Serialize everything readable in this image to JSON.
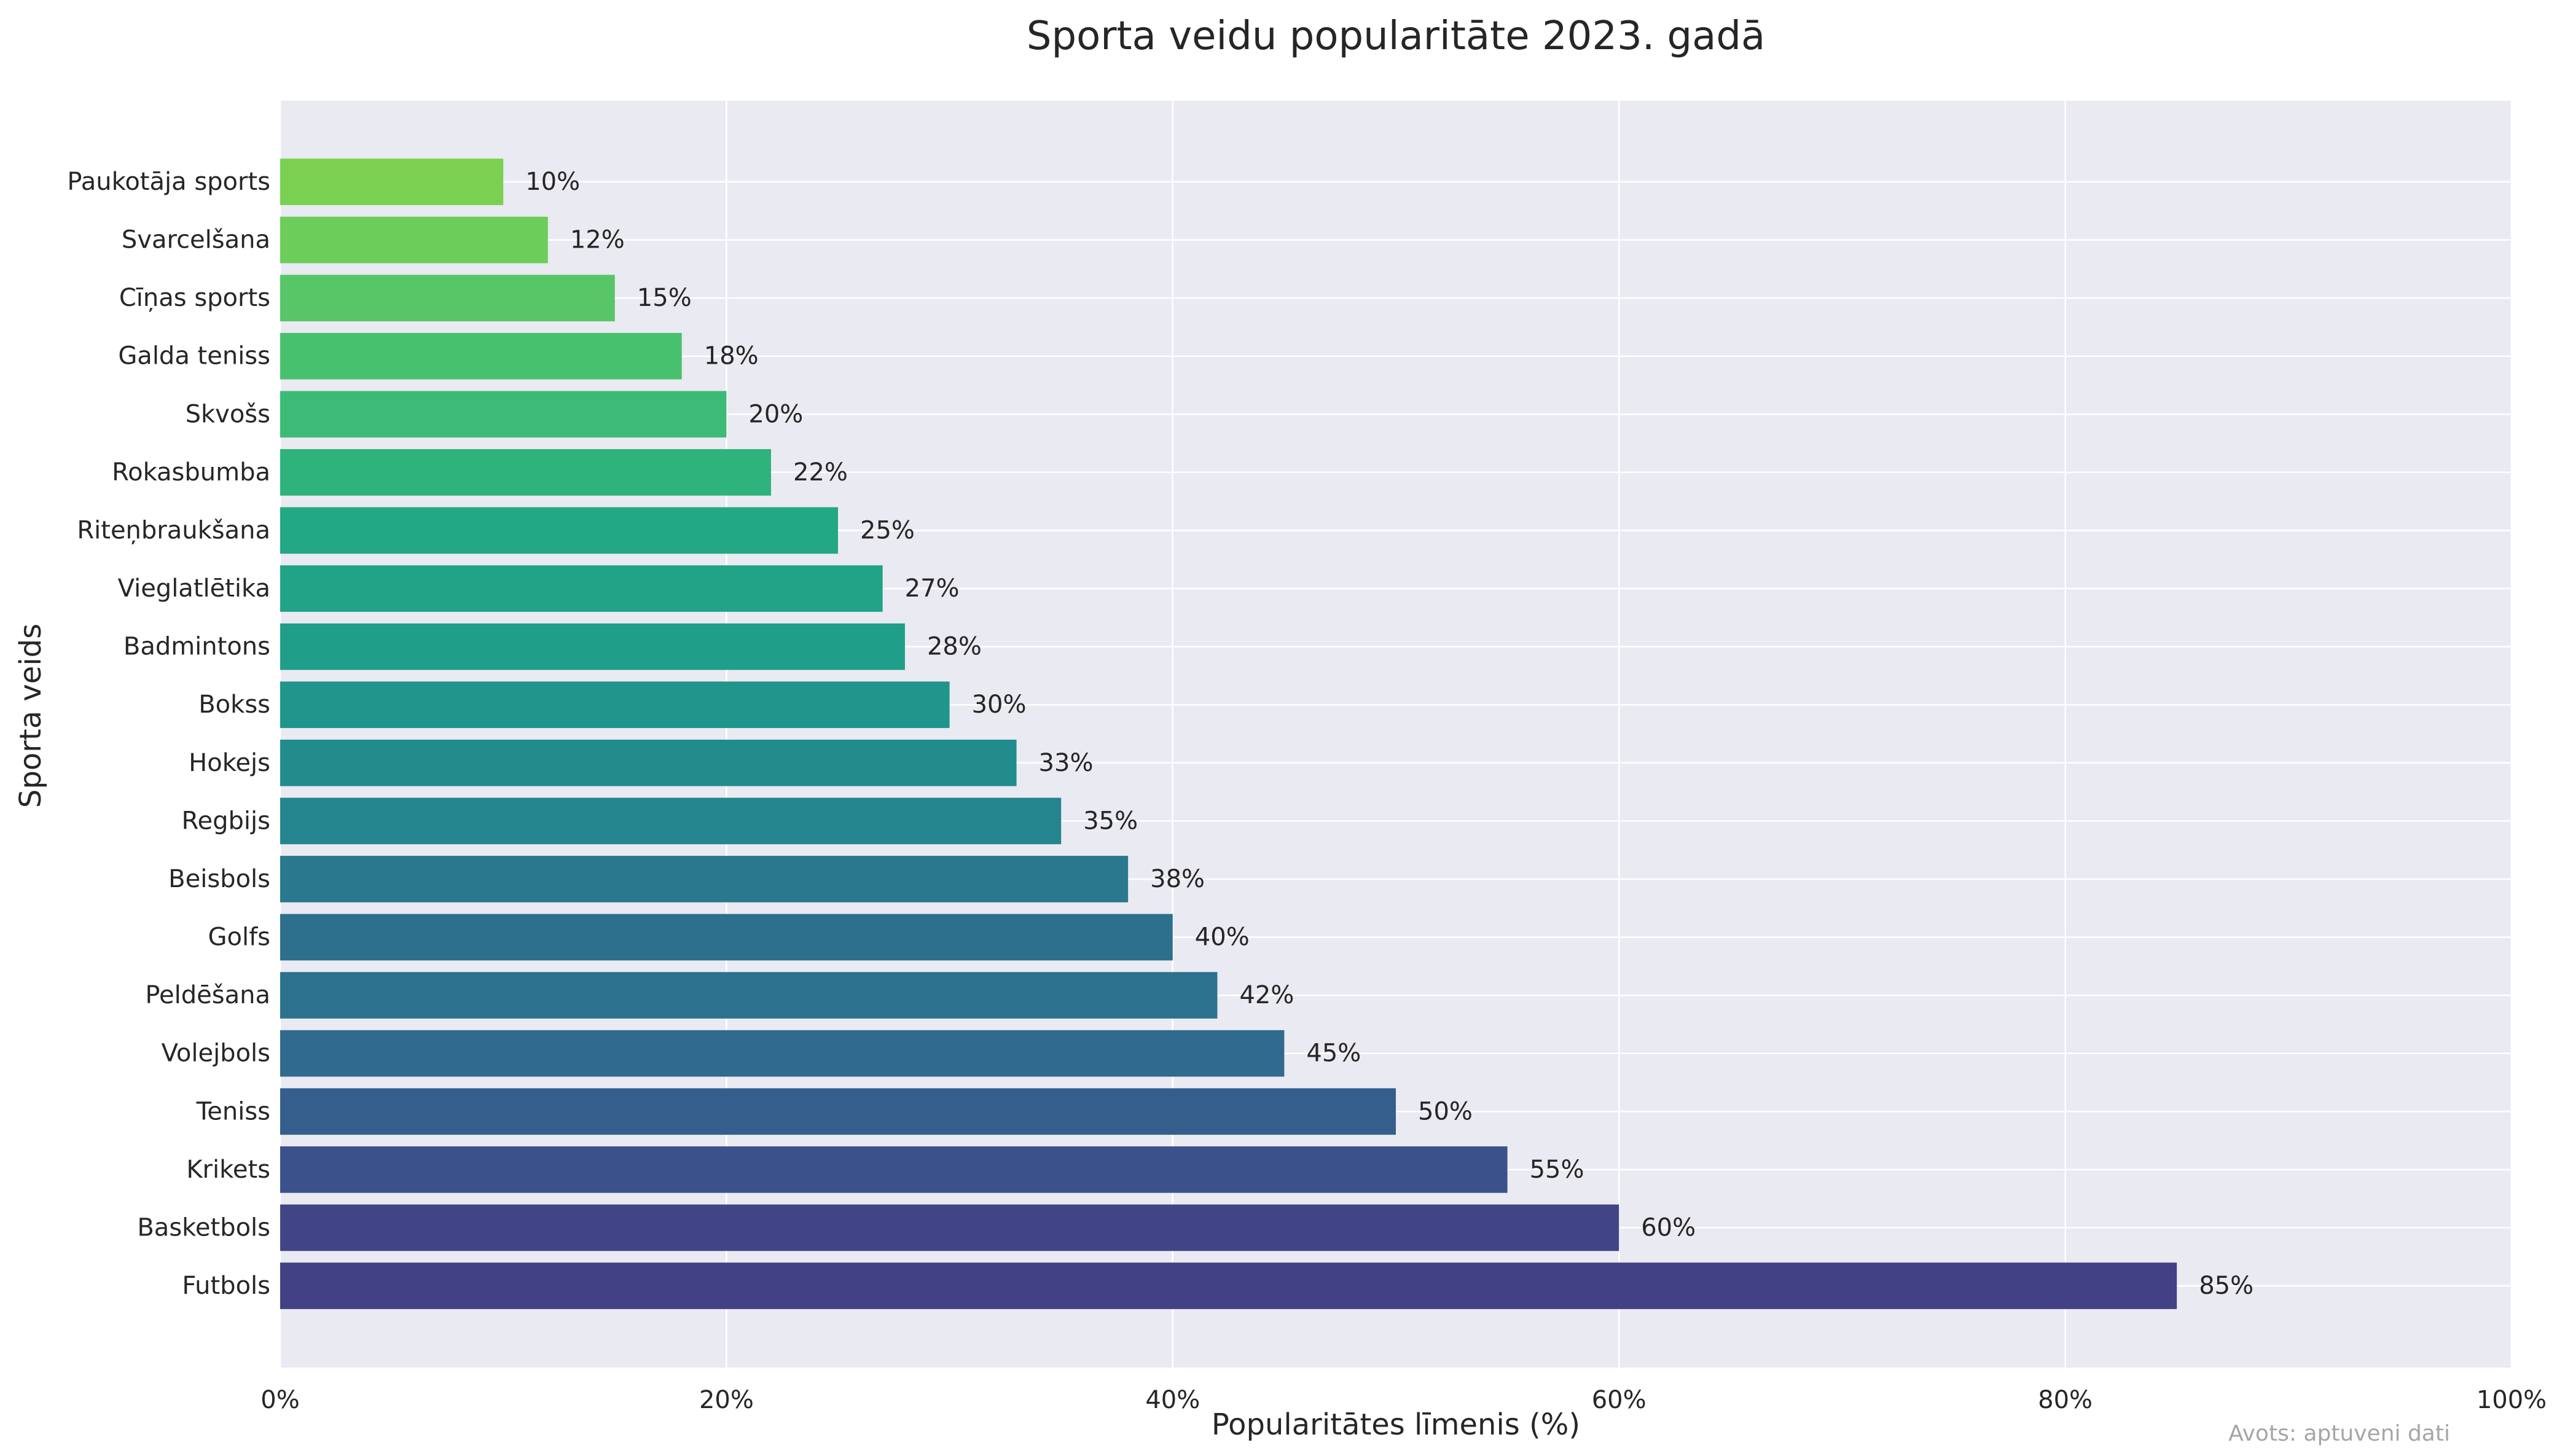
{
  "chart_data": {
    "type": "bar",
    "orientation": "horizontal",
    "title": "Sporta veidu popularitāte 2023. gadā",
    "xlabel": "Popularitātes līmenis (%)",
    "ylabel": "Sporta veids",
    "xlim": [
      0,
      100
    ],
    "x_ticks": [
      0,
      20,
      40,
      60,
      80,
      100
    ],
    "x_tick_labels": [
      "0%",
      "20%",
      "40%",
      "60%",
      "80%",
      "100%"
    ],
    "grid": true,
    "value_label_suffix": "%",
    "categories": [
      "Futbols",
      "Basketbols",
      "Krikets",
      "Teniss",
      "Volejbols",
      "Peldēšana",
      "Golfs",
      "Beisbols",
      "Regbijs",
      "Hokejs",
      "Bokss",
      "Badmintons",
      "Vieglatlētika",
      "Riteņbraukšana",
      "Rokasbumba",
      "Skvošs",
      "Galda teniss",
      "Cīņas sports",
      "Svarcelšana",
      "Paukotāja sports"
    ],
    "values": [
      85,
      60,
      55,
      50,
      45,
      42,
      40,
      38,
      35,
      33,
      30,
      28,
      27,
      25,
      22,
      20,
      18,
      15,
      12,
      10
    ],
    "bar_colors": [
      "#424186",
      "#414487",
      "#3b518b",
      "#355e8d",
      "#306a8e",
      "#2c728e",
      "#2d708e",
      "#2a788e",
      "#25858e",
      "#228c8d",
      "#1f958b",
      "#1f9e89",
      "#20a386",
      "#22a884",
      "#2eb37c",
      "#3bbb75",
      "#48c16e",
      "#56c667",
      "#6ccd5a",
      "#7ad151"
    ],
    "source_note": "Avots: aptuveni dati",
    "plot_background": "#eaeaf2",
    "grid_color": "#ffffff"
  }
}
